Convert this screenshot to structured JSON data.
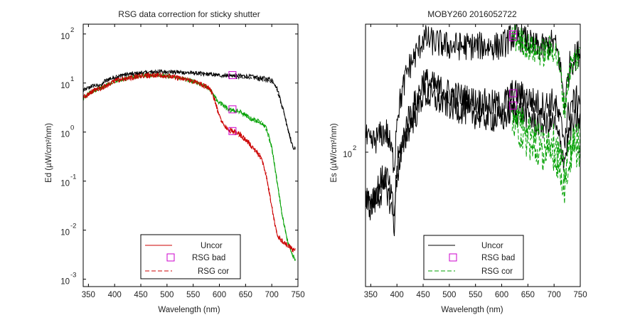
{
  "figure": {
    "background": "#ffffff",
    "axis_color": "#000000"
  },
  "chart_data": [
    {
      "type": "line",
      "title": "RSG data correction for sticky shutter",
      "xlabel": "Wavelength (nm)",
      "ylabel": "Ed (µW/cm²/nm)",
      "xlim": [
        340,
        750
      ],
      "ylim_log10": [
        -3.15,
        2.2
      ],
      "y_scale": "log",
      "grid": false,
      "legend_position": "bottom-center",
      "x_ticks": [
        "350",
        "400",
        "450",
        "500",
        "550",
        "600",
        "650",
        "700",
        "750"
      ],
      "y_ticks": [
        {
          "base": "10",
          "exp": "2",
          "log10": 2
        },
        {
          "base": "10",
          "exp": "1",
          "log10": 1
        },
        {
          "base": "10",
          "exp": "0",
          "log10": 0
        },
        {
          "base": "10",
          "exp": "-1",
          "log10": -1
        },
        {
          "base": "10",
          "exp": "-2",
          "log10": -2
        },
        {
          "base": "10",
          "exp": "-3",
          "log10": -3
        }
      ],
      "legend": [
        {
          "label": "Uncor",
          "style": "solid",
          "color": "#cc0000"
        },
        {
          "label": "RSG bad",
          "style": "marker",
          "color": "#cc00cc"
        },
        {
          "label": "RSG cor",
          "style": "dashed",
          "color": "#cc0000"
        }
      ],
      "series": [
        {
          "color": "#000000",
          "style": "solid",
          "noise": 0.04,
          "x": [
            340,
            350,
            360,
            375,
            380,
            390,
            400,
            420,
            450,
            480,
            500,
            550,
            600,
            650,
            700,
            710,
            720,
            730,
            740,
            745
          ],
          "y": [
            7.0,
            8.0,
            9.0,
            8.5,
            11,
            12,
            13,
            15,
            16,
            17,
            17,
            16,
            14.5,
            14,
            12,
            8,
            3.5,
            1.3,
            0.5,
            0.45
          ]
        },
        {
          "color": "#000000",
          "style": "dashed",
          "noise": 0.04,
          "x": [
            340,
            350,
            360,
            375,
            380,
            390,
            400,
            420,
            450,
            480,
            500,
            550,
            600,
            650,
            700,
            710,
            720,
            730,
            740,
            745
          ],
          "y": [
            7.0,
            8.0,
            9.0,
            8.5,
            11,
            12,
            13,
            15,
            16,
            17,
            17,
            16,
            14.0,
            13.2,
            11,
            7.5,
            3.3,
            1.25,
            0.5,
            0.45
          ]
        },
        {
          "color": "#00a000",
          "style": "solid",
          "noise": 0.04,
          "x": [
            340,
            350,
            360,
            375,
            400,
            450,
            480,
            500,
            550,
            580,
            590,
            600,
            610,
            620,
            640,
            660,
            680,
            690,
            700,
            710,
            720,
            730,
            740,
            745
          ],
          "y": [
            5,
            6,
            7,
            8,
            11,
            14,
            14.5,
            14,
            11,
            8,
            5.5,
            4,
            3.4,
            2.9,
            2.6,
            1.9,
            1.6,
            1.2,
            0.5,
            0.1,
            0.02,
            0.006,
            0.003,
            0.0025
          ]
        },
        {
          "color": "#00a000",
          "style": "dashed",
          "noise": 0.04,
          "x": [
            340,
            350,
            360,
            375,
            400,
            450,
            480,
            500,
            550,
            580,
            590,
            600,
            610,
            620,
            640,
            660,
            680,
            690,
            700,
            710,
            720,
            730,
            740,
            745
          ],
          "y": [
            5,
            6,
            7,
            8,
            11,
            14,
            14.5,
            14,
            11,
            8,
            5.3,
            3.9,
            3.2,
            2.75,
            2.5,
            1.85,
            1.55,
            1.15,
            0.48,
            0.1,
            0.02,
            0.006,
            0.003,
            0.0025
          ]
        },
        {
          "color": "#cc0000",
          "style": "solid",
          "noise": 0.05,
          "x": [
            340,
            350,
            360,
            375,
            400,
            450,
            480,
            500,
            550,
            580,
            590,
            600,
            610,
            620,
            640,
            660,
            680,
            690,
            700,
            710,
            720,
            730,
            740,
            745
          ],
          "y": [
            5,
            6,
            7,
            8,
            11,
            14,
            14.5,
            14,
            11,
            8,
            5.0,
            2.2,
            1.3,
            1.1,
            0.9,
            0.55,
            0.3,
            0.12,
            0.03,
            0.008,
            0.006,
            0.005,
            0.004,
            0.004
          ]
        },
        {
          "color": "#cc0000",
          "style": "dashed",
          "noise": 0.05,
          "x": [
            340,
            350,
            360,
            375,
            400,
            450,
            480,
            500,
            550,
            580,
            590,
            600,
            610,
            620,
            640,
            660,
            680,
            690,
            700,
            710,
            720,
            730,
            740,
            745
          ],
          "y": [
            5,
            6,
            7,
            8,
            11,
            14,
            14.5,
            14,
            11,
            8,
            4.9,
            2.1,
            1.25,
            1.05,
            0.87,
            0.53,
            0.29,
            0.12,
            0.03,
            0.008,
            0.006,
            0.005,
            0.004,
            0.004
          ]
        }
      ],
      "markers": {
        "color": "#cc00cc",
        "x": [
          625,
          625,
          625
        ],
        "y": [
          14.5,
          2.9,
          1.05
        ]
      }
    },
    {
      "type": "line",
      "title": "MOBY260  2016052722",
      "xlabel": "Wavelength (nm)",
      "ylabel": "Es (µW/cm²/nm)",
      "xlim": [
        340,
        750
      ],
      "ylim_log10": [
        1.265,
        2.7
      ],
      "y_scale": "log",
      "grid": false,
      "legend_position": "bottom-center",
      "x_ticks": [
        "350",
        "400",
        "450",
        "500",
        "550",
        "600",
        "650",
        "700",
        "750"
      ],
      "y_ticks": [
        {
          "base": "10",
          "exp": "2",
          "log10": 2
        }
      ],
      "legend": [
        {
          "label": "Uncor",
          "style": "solid",
          "color": "#000000"
        },
        {
          "label": "RSG bad",
          "style": "marker",
          "color": "#cc00cc"
        },
        {
          "label": "RSG cor",
          "style": "dashed",
          "color": "#00a000"
        }
      ],
      "series": [
        {
          "color": "#000000",
          "style": "solid",
          "noise": 0.08,
          "x": [
            340,
            350,
            370,
            380,
            390,
            395,
            400,
            420,
            440,
            450,
            470,
            500,
            550,
            600,
            620,
            640,
            660,
            680,
            700,
            710,
            720,
            730,
            740,
            750
          ],
          "y": [
            120,
            110,
            125,
            130,
            100,
            85,
            160,
            280,
            360,
            420,
            400,
            380,
            380,
            380,
            430,
            420,
            380,
            370,
            400,
            320,
            180,
            300,
            330,
            360
          ]
        },
        {
          "color": "#000000",
          "style": "solid",
          "noise": 0.08,
          "x": [
            340,
            350,
            370,
            380,
            390,
            395,
            400,
            420,
            440,
            450,
            470,
            500,
            550,
            600,
            620,
            640,
            660,
            680,
            700,
            710,
            720,
            730,
            740,
            750
          ],
          "y": [
            60,
            55,
            70,
            75,
            55,
            45,
            85,
            150,
            200,
            250,
            230,
            210,
            190,
            180,
            210,
            205,
            190,
            180,
            190,
            150,
            120,
            180,
            190,
            200
          ]
        },
        {
          "color": "#000000",
          "style": "solid",
          "noise": 0.08,
          "x": [
            340,
            350,
            370,
            380,
            390,
            395,
            400,
            420,
            440,
            450,
            470,
            500,
            550,
            600,
            620,
            640,
            660,
            680,
            700,
            710,
            720,
            730,
            740,
            750
          ],
          "y": [
            55,
            50,
            60,
            65,
            48,
            40,
            75,
            130,
            170,
            210,
            195,
            180,
            160,
            150,
            170,
            165,
            150,
            140,
            145,
            115,
            90,
            135,
            145,
            150
          ]
        },
        {
          "color": "#00a000",
          "style": "dashed",
          "noise": 0.08,
          "x": [
            620,
            640,
            660,
            680,
            700,
            710,
            720,
            730,
            740,
            750
          ],
          "y": [
            430,
            400,
            360,
            350,
            370,
            300,
            170,
            290,
            320,
            340
          ]
        },
        {
          "color": "#00a000",
          "style": "dashed",
          "noise": 0.08,
          "x": [
            620,
            640,
            660,
            680,
            700,
            710,
            720,
            730,
            740,
            750
          ],
          "y": [
            170,
            150,
            130,
            120,
            120,
            100,
            75,
            110,
            120,
            125
          ]
        },
        {
          "color": "#00a000",
          "style": "dashed",
          "noise": 0.08,
          "x": [
            620,
            640,
            660,
            680,
            700,
            710,
            720,
            730,
            740,
            750
          ],
          "y": [
            140,
            120,
            100,
            95,
            95,
            80,
            62,
            90,
            98,
            100
          ]
        }
      ],
      "markers": {
        "color": "#cc00cc",
        "x": [
          622,
          622,
          622,
          622
        ],
        "y": [
          440,
          425,
          210,
          180
        ]
      }
    }
  ]
}
